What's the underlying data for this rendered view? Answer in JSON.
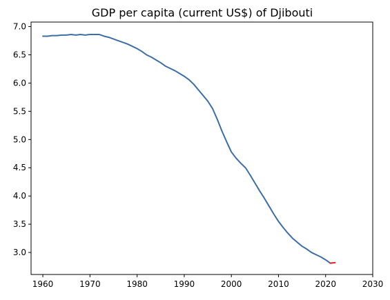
{
  "chart_data": {
    "type": "line",
    "title": "GDP per capita (current US$) of Djibouti",
    "xlabel": "",
    "ylabel": "",
    "xlim": [
      1957.5,
      2030
    ],
    "ylim": [
      2.61,
      7.08
    ],
    "grid": false,
    "legend": "none",
    "x_ticks": [
      1960,
      1970,
      1980,
      1990,
      2000,
      2010,
      2020,
      2030
    ],
    "x_tick_labels": [
      "1960",
      "1970",
      "1980",
      "1990",
      "2000",
      "2010",
      "2020",
      "2030"
    ],
    "y_ticks": [
      3.0,
      3.5,
      4.0,
      4.5,
      5.0,
      5.5,
      6.0,
      6.5,
      7.0
    ],
    "y_tick_labels": [
      "3.0",
      "3.5",
      "4.0",
      "4.5",
      "5.0",
      "5.5",
      "6.0",
      "6.5",
      "7.0"
    ],
    "series": [
      {
        "color": "#3b6ea8",
        "x": [
          1960,
          1961,
          1962,
          1963,
          1964,
          1965,
          1966,
          1967,
          1968,
          1969,
          1970,
          1971,
          1972,
          1973,
          1974,
          1975,
          1976,
          1977,
          1978,
          1979,
          1980,
          1981,
          1982,
          1983,
          1984,
          1985,
          1986,
          1987,
          1988,
          1989,
          1990,
          1991,
          1992,
          1993,
          1994,
          1995,
          1996,
          1997,
          1998,
          1999,
          2000,
          2001,
          2002,
          2003,
          2004,
          2005,
          2006,
          2007,
          2008,
          2009,
          2010,
          2011,
          2012,
          2013,
          2014,
          2015,
          2016,
          2017,
          2018,
          2019,
          2020,
          2021
        ],
        "y": [
          6.83,
          6.83,
          6.84,
          6.84,
          6.85,
          6.85,
          6.86,
          6.85,
          6.86,
          6.85,
          6.86,
          6.86,
          6.86,
          6.83,
          6.81,
          6.78,
          6.75,
          6.72,
          6.69,
          6.65,
          6.61,
          6.56,
          6.5,
          6.46,
          6.41,
          6.36,
          6.3,
          6.26,
          6.22,
          6.17,
          6.12,
          6.06,
          5.98,
          5.88,
          5.78,
          5.68,
          5.55,
          5.36,
          5.15,
          4.96,
          4.78,
          4.67,
          4.58,
          4.5,
          4.37,
          4.23,
          4.09,
          3.96,
          3.82,
          3.68,
          3.55,
          3.44,
          3.34,
          3.25,
          3.18,
          3.11,
          3.06,
          3.0,
          2.96,
          2.92,
          2.87,
          2.81
        ]
      },
      {
        "color": "#e31a1c",
        "x": [
          2021,
          2022
        ],
        "y": [
          2.81,
          2.82
        ]
      }
    ]
  }
}
